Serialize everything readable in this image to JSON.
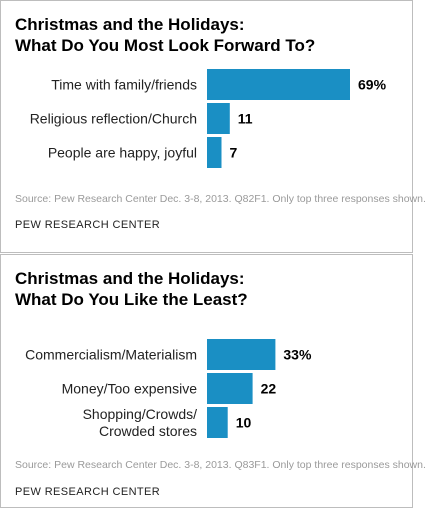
{
  "chart_data": [
    {
      "type": "bar",
      "orientation": "horizontal",
      "title_lines": [
        "Christmas and the Holidays:",
        "What Do You Most Look Forward To?"
      ],
      "categories": [
        [
          "Time with family/friends"
        ],
        [
          "Religious reflection/Church"
        ],
        [
          "People are happy, joyful"
        ]
      ],
      "values": [
        69,
        11,
        7
      ],
      "value_labels": [
        "69%",
        "11",
        "7"
      ],
      "xlim": [
        0,
        69
      ],
      "grid": false,
      "legend": false,
      "bar_color": "#1a8fc4",
      "source": "Source: Pew Research Center Dec. 3-8, 2013. Q82F1. Only top three responses shown.",
      "organization": "PEW RESEARCH CENTER"
    },
    {
      "type": "bar",
      "orientation": "horizontal",
      "title_lines": [
        "Christmas and the Holidays:",
        "What Do You Like the Least?"
      ],
      "categories": [
        [
          "Commercialism/Materialism"
        ],
        [
          "Money/Too expensive"
        ],
        [
          "Shopping/Crowds/",
          "Crowded stores"
        ]
      ],
      "values": [
        33,
        22,
        10
      ],
      "value_labels": [
        "33%",
        "22",
        "10"
      ],
      "xlim": [
        0,
        69
      ],
      "grid": false,
      "legend": false,
      "bar_color": "#1a8fc4",
      "source": "Source: Pew Research Center Dec. 3-8, 2013. Q83F1. Only top three responses shown.",
      "organization": "PEW RESEARCH CENTER"
    }
  ]
}
